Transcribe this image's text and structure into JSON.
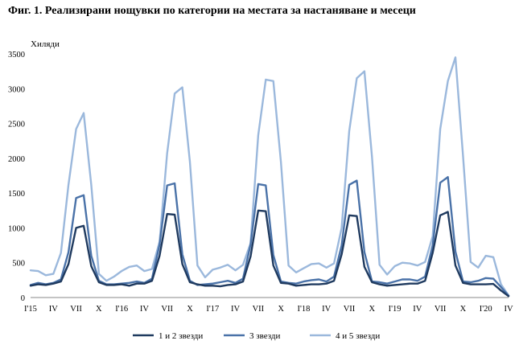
{
  "title": "Фиг. 1. Реализирани нощувки по категории на местата за настаняване и месеци",
  "chart_data": {
    "type": "line",
    "ylabel": "Хиляди",
    "ylim": [
      0,
      3500
    ],
    "yticks": [
      0,
      500,
      1000,
      1500,
      2000,
      2500,
      3000,
      3500
    ],
    "x": [
      "I'15",
      "II'15",
      "III'15",
      "IV'15",
      "V'15",
      "VI'15",
      "VII'15",
      "VIII'15",
      "IX'15",
      "X'15",
      "XI'15",
      "XII'15",
      "I'16",
      "II'16",
      "III'16",
      "IV'16",
      "V'16",
      "VI'16",
      "VII'16",
      "VIII'16",
      "IX'16",
      "X'16",
      "XI'16",
      "XII'16",
      "I'17",
      "II'17",
      "III'17",
      "IV'17",
      "V'17",
      "VI'17",
      "VII'17",
      "VIII'17",
      "IX'17",
      "X'17",
      "XI'17",
      "XII'17",
      "I'18",
      "II'18",
      "III'18",
      "IV'18",
      "V'18",
      "VI'18",
      "VII'18",
      "VIII'18",
      "IX'18",
      "X'18",
      "XI'18",
      "XII'18",
      "I'19",
      "II'19",
      "III'19",
      "IV'19",
      "V'19",
      "VI'19",
      "VII'19",
      "VIII'19",
      "IX'19",
      "X'19",
      "XI'19",
      "XII'19",
      "I'20",
      "II'20",
      "III'20",
      "IV'20"
    ],
    "x_tick_labels": [
      {
        "index": 0,
        "label": "I'15"
      },
      {
        "index": 3,
        "label": "IV"
      },
      {
        "index": 6,
        "label": "VII"
      },
      {
        "index": 9,
        "label": "X"
      },
      {
        "index": 12,
        "label": "I'16"
      },
      {
        "index": 15,
        "label": "IV"
      },
      {
        "index": 18,
        "label": "VII"
      },
      {
        "index": 21,
        "label": "X"
      },
      {
        "index": 24,
        "label": "I'17"
      },
      {
        "index": 27,
        "label": "IV"
      },
      {
        "index": 30,
        "label": "VII"
      },
      {
        "index": 33,
        "label": "X"
      },
      {
        "index": 36,
        "label": "I'18"
      },
      {
        "index": 39,
        "label": "IV"
      },
      {
        "index": 42,
        "label": "VII"
      },
      {
        "index": 45,
        "label": "X"
      },
      {
        "index": 48,
        "label": "I'19"
      },
      {
        "index": 51,
        "label": "IV"
      },
      {
        "index": 54,
        "label": "VII"
      },
      {
        "index": 57,
        "label": "X"
      },
      {
        "index": 60,
        "label": "I'20"
      },
      {
        "index": 63,
        "label": "IV"
      }
    ],
    "grid": false,
    "legend_position": "bottom",
    "series": [
      {
        "name": "1 и 2 звезди",
        "color": "#1f3a5f",
        "values": [
          170,
          190,
          180,
          200,
          230,
          480,
          1000,
          1030,
          450,
          220,
          180,
          180,
          190,
          170,
          200,
          200,
          240,
          600,
          1200,
          1190,
          480,
          220,
          190,
          170,
          170,
          160,
          180,
          190,
          230,
          590,
          1250,
          1240,
          460,
          210,
          200,
          170,
          180,
          190,
          190,
          200,
          240,
          620,
          1180,
          1170,
          440,
          220,
          190,
          170,
          180,
          190,
          200,
          200,
          240,
          640,
          1180,
          1230,
          460,
          210,
          190,
          190,
          190,
          195,
          100,
          20
        ]
      },
      {
        "name": "3 звезди",
        "color": "#4a72a8",
        "values": [
          180,
          210,
          190,
          210,
          260,
          650,
          1430,
          1470,
          600,
          240,
          190,
          190,
          200,
          210,
          230,
          210,
          270,
          760,
          1610,
          1640,
          620,
          240,
          180,
          190,
          200,
          220,
          240,
          210,
          270,
          760,
          1630,
          1610,
          610,
          230,
          210,
          200,
          230,
          250,
          260,
          230,
          300,
          750,
          1620,
          1680,
          650,
          230,
          220,
          200,
          230,
          260,
          260,
          240,
          300,
          750,
          1650,
          1730,
          660,
          230,
          220,
          240,
          280,
          270,
          150,
          25
        ]
      },
      {
        "name": "4 и 5 звезди",
        "color": "#9bb8dc",
        "values": [
          390,
          380,
          320,
          340,
          640,
          1620,
          2420,
          2650,
          1620,
          340,
          240,
          300,
          380,
          440,
          460,
          380,
          410,
          800,
          2070,
          2930,
          3020,
          1950,
          460,
          290,
          400,
          430,
          470,
          390,
          470,
          780,
          2330,
          3130,
          3110,
          1950,
          460,
          360,
          420,
          480,
          490,
          430,
          490,
          1000,
          2390,
          3150,
          3250,
          2020,
          470,
          330,
          450,
          500,
          490,
          460,
          510,
          880,
          2420,
          3110,
          3450,
          2040,
          510,
          430,
          600,
          580,
          190,
          30
        ]
      }
    ]
  }
}
